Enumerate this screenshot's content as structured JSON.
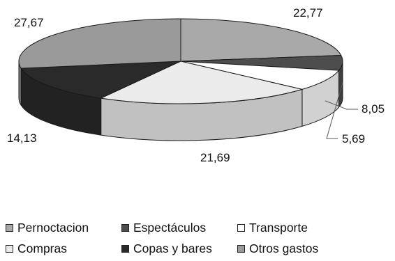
{
  "chart_data": {
    "type": "pie",
    "title": "",
    "legend_placement": "bottom",
    "slices": [
      {
        "name": "Pernoctacion",
        "value": 22.77,
        "label": "22,77",
        "color": "#a9a9a9"
      },
      {
        "name": "Espectáculos",
        "value": 5.69,
        "label": "5,69",
        "color": "#4d4d4d"
      },
      {
        "name": "Transporte",
        "value": 8.05,
        "label": "8,05",
        "color": "#ffffff"
      },
      {
        "name": "Compras",
        "value": 21.69,
        "label": "21,69",
        "color": "#ebebeb"
      },
      {
        "name": "Copas y bares",
        "value": 14.13,
        "label": "14,13",
        "color": "#2a2a2a"
      },
      {
        "name": "Otros gastos",
        "value": 27.67,
        "label": "27,67",
        "color": "#9a9a9a"
      }
    ]
  }
}
